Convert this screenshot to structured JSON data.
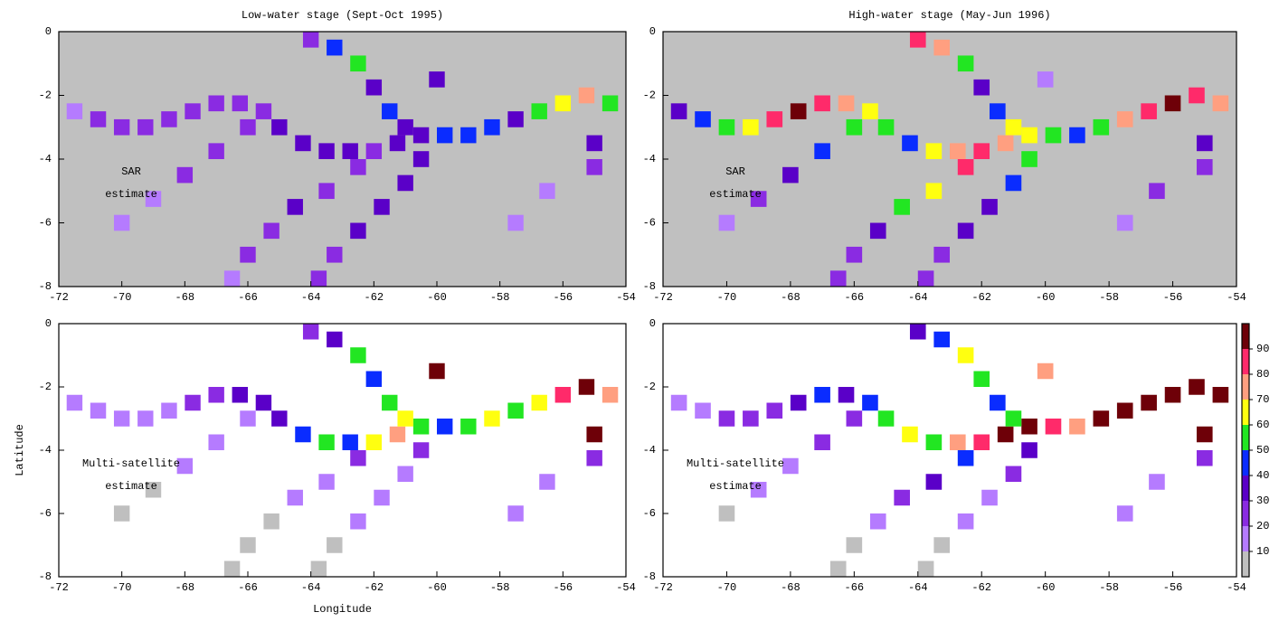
{
  "chart_data": [
    {
      "type": "cellmap",
      "title": "Low-water stage (Sept-Oct 1995)",
      "annotation": [
        "SAR",
        "estimate"
      ],
      "background": "#c0c0c0",
      "xlim": [
        -72,
        -54
      ],
      "ylim": [
        -8,
        0
      ],
      "xticks": [
        -72,
        -70,
        -68,
        -66,
        -64,
        -62,
        -60,
        -58,
        -56,
        -54
      ],
      "yticks": [
        0,
        -2,
        -4,
        -6,
        -8
      ],
      "cell_size": 0.5,
      "x": [
        -71.5,
        -70.75,
        -70,
        -69.25,
        -68.5,
        -67.75,
        -67,
        -66.25,
        -65.5,
        -65,
        -64.25,
        -63.5,
        -62.75,
        -62,
        -61.25,
        -60.5,
        -59.75,
        -59,
        -58.25,
        -57.5,
        -56.75,
        -56,
        -55.25,
        -54.5,
        -64,
        -63.25,
        -62.5,
        -62,
        -61.5,
        -61,
        -60.5,
        -61,
        -61.75,
        -62.5,
        -63.25,
        -63.75,
        -62.5,
        -63.5,
        -64.5,
        -65.25,
        -66,
        -66.5,
        -66,
        -67,
        -68,
        -69,
        -70,
        -60,
        -55,
        -55,
        -56.5,
        -57.5
      ],
      "y": [
        -2.5,
        -2.75,
        -3,
        -3,
        -2.75,
        -2.5,
        -2.25,
        -2.25,
        -2.5,
        -3,
        -3.5,
        -3.75,
        -3.75,
        -3.75,
        -3.5,
        -3.25,
        -3.25,
        -3.25,
        -3,
        -2.75,
        -2.5,
        -2.25,
        -2,
        -2.25,
        -0.25,
        -0.5,
        -1,
        -1.75,
        -2.5,
        -3,
        -4,
        -4.75,
        -5.5,
        -6.25,
        -7,
        -7.75,
        -4.25,
        -5,
        -5.5,
        -6.25,
        -7,
        -7.75,
        -3,
        -3.75,
        -4.5,
        -5.25,
        -6,
        -1.5,
        -3.5,
        -4.25,
        -5,
        -6
      ],
      "values": [
        15,
        25,
        25,
        25,
        25,
        25,
        25,
        25,
        25,
        35,
        35,
        35,
        35,
        25,
        35,
        35,
        45,
        45,
        45,
        35,
        55,
        65,
        75,
        55,
        25,
        45,
        55,
        35,
        45,
        35,
        35,
        35,
        35,
        35,
        25,
        25,
        25,
        25,
        35,
        25,
        25,
        15,
        25,
        25,
        25,
        15,
        15,
        35,
        35,
        25,
        15,
        15
      ]
    },
    {
      "type": "cellmap",
      "title": "High-water stage (May-Jun 1996)",
      "annotation": [
        "SAR",
        "estimate"
      ],
      "background": "#c0c0c0",
      "xlim": [
        -72,
        -54
      ],
      "ylim": [
        -8,
        0
      ],
      "xticks": [
        -72,
        -70,
        -68,
        -66,
        -64,
        -62,
        -60,
        -58,
        -56,
        -54
      ],
      "yticks": [
        0,
        -2,
        -4,
        -6,
        -8
      ],
      "cell_size": 0.5,
      "x": [
        -71.5,
        -70.75,
        -70,
        -69.25,
        -68.5,
        -67.75,
        -67,
        -66.25,
        -65.5,
        -65,
        -64.25,
        -63.5,
        -62.75,
        -62,
        -61.25,
        -60.5,
        -59.75,
        -59,
        -58.25,
        -57.5,
        -56.75,
        -56,
        -55.25,
        -54.5,
        -64,
        -63.25,
        -62.5,
        -62,
        -61.5,
        -61,
        -60.5,
        -61,
        -61.75,
        -62.5,
        -63.25,
        -63.75,
        -62.5,
        -63.5,
        -64.5,
        -65.25,
        -66,
        -66.5,
        -66,
        -67,
        -68,
        -69,
        -70,
        -60,
        -55,
        -55,
        -56.5,
        -57.5
      ],
      "y": [
        -2.5,
        -2.75,
        -3,
        -3,
        -2.75,
        -2.5,
        -2.25,
        -2.25,
        -2.5,
        -3,
        -3.5,
        -3.75,
        -3.75,
        -3.75,
        -3.5,
        -3.25,
        -3.25,
        -3.25,
        -3,
        -2.75,
        -2.5,
        -2.25,
        -2,
        -2.25,
        -0.25,
        -0.5,
        -1,
        -1.75,
        -2.5,
        -3,
        -4,
        -4.75,
        -5.5,
        -6.25,
        -7,
        -7.75,
        -4.25,
        -5,
        -5.5,
        -6.25,
        -7,
        -7.75,
        -3,
        -3.75,
        -4.5,
        -5.25,
        -6,
        -1.5,
        -3.5,
        -4.25,
        -5,
        -6
      ],
      "values": [
        35,
        45,
        55,
        65,
        85,
        95,
        85,
        75,
        65,
        55,
        45,
        65,
        75,
        85,
        75,
        65,
        55,
        45,
        55,
        75,
        85,
        95,
        85,
        75,
        85,
        75,
        55,
        35,
        45,
        65,
        55,
        45,
        35,
        35,
        25,
        25,
        85,
        65,
        55,
        35,
        25,
        25,
        55,
        45,
        35,
        25,
        15,
        15,
        35,
        25,
        25,
        15
      ]
    },
    {
      "type": "cellmap",
      "annotation": [
        "Multi-satellite",
        "estimate"
      ],
      "background": "#ffffff",
      "xlabel": "Longitude",
      "ylabel": "Latitude",
      "xlim": [
        -72,
        -54
      ],
      "ylim": [
        -8,
        0
      ],
      "xticks": [
        -72,
        -70,
        -68,
        -66,
        -64,
        -62,
        -60,
        -58,
        -56,
        -54
      ],
      "yticks": [
        0,
        -2,
        -4,
        -6,
        -8
      ],
      "cell_size": 0.5,
      "x": [
        -71.5,
        -70.75,
        -70,
        -69.25,
        -68.5,
        -67.75,
        -67,
        -66.25,
        -65.5,
        -65,
        -64.25,
        -63.5,
        -62.75,
        -62,
        -61.25,
        -60.5,
        -59.75,
        -59,
        -58.25,
        -57.5,
        -56.75,
        -56,
        -55.25,
        -54.5,
        -64,
        -63.25,
        -62.5,
        -62,
        -61.5,
        -61,
        -60.5,
        -61,
        -61.75,
        -62.5,
        -63.25,
        -63.75,
        -62.5,
        -63.5,
        -64.5,
        -65.25,
        -66,
        -66.5,
        -66,
        -67,
        -68,
        -69,
        -70,
        -60,
        -55,
        -55,
        -56.5,
        -57.5
      ],
      "y": [
        -2.5,
        -2.75,
        -3,
        -3,
        -2.75,
        -2.5,
        -2.25,
        -2.25,
        -2.5,
        -3,
        -3.5,
        -3.75,
        -3.75,
        -3.75,
        -3.5,
        -3.25,
        -3.25,
        -3.25,
        -3,
        -2.75,
        -2.5,
        -2.25,
        -2,
        -2.25,
        -0.25,
        -0.5,
        -1,
        -1.75,
        -2.5,
        -3,
        -4,
        -4.75,
        -5.5,
        -6.25,
        -7,
        -7.75,
        -4.25,
        -5,
        -5.5,
        -6.25,
        -7,
        -7.75,
        -3,
        -3.75,
        -4.5,
        -5.25,
        -6,
        -1.5,
        -3.5,
        -4.25,
        -5,
        -6
      ],
      "values": [
        15,
        15,
        15,
        15,
        15,
        25,
        25,
        35,
        35,
        35,
        45,
        55,
        45,
        65,
        75,
        55,
        45,
        55,
        65,
        55,
        65,
        85,
        95,
        75,
        25,
        35,
        55,
        45,
        55,
        65,
        25,
        15,
        15,
        15,
        5,
        5,
        25,
        15,
        15,
        5,
        5,
        5,
        15,
        15,
        15,
        5,
        5,
        95,
        95,
        25,
        15,
        15
      ]
    },
    {
      "type": "cellmap",
      "annotation": [
        "Multi-satellite",
        "estimate"
      ],
      "background": "#ffffff",
      "xlim": [
        -72,
        -54
      ],
      "ylim": [
        -8,
        0
      ],
      "xticks": [
        -72,
        -70,
        -68,
        -66,
        -64,
        -62,
        -60,
        -58,
        -56,
        -54
      ],
      "yticks": [
        0,
        -2,
        -4,
        -6,
        -8
      ],
      "cell_size": 0.5,
      "x": [
        -71.5,
        -70.75,
        -70,
        -69.25,
        -68.5,
        -67.75,
        -67,
        -66.25,
        -65.5,
        -65,
        -64.25,
        -63.5,
        -62.75,
        -62,
        -61.25,
        -60.5,
        -59.75,
        -59,
        -58.25,
        -57.5,
        -56.75,
        -56,
        -55.25,
        -54.5,
        -64,
        -63.25,
        -62.5,
        -62,
        -61.5,
        -61,
        -60.5,
        -61,
        -61.75,
        -62.5,
        -63.25,
        -63.75,
        -62.5,
        -63.5,
        -64.5,
        -65.25,
        -66,
        -66.5,
        -66,
        -67,
        -68,
        -69,
        -70,
        -60,
        -55,
        -55,
        -56.5,
        -57.5
      ],
      "y": [
        -2.5,
        -2.75,
        -3,
        -3,
        -2.75,
        -2.5,
        -2.25,
        -2.25,
        -2.5,
        -3,
        -3.5,
        -3.75,
        -3.75,
        -3.75,
        -3.5,
        -3.25,
        -3.25,
        -3.25,
        -3,
        -2.75,
        -2.5,
        -2.25,
        -2,
        -2.25,
        -0.25,
        -0.5,
        -1,
        -1.75,
        -2.5,
        -3,
        -4,
        -4.75,
        -5.5,
        -6.25,
        -7,
        -7.75,
        -4.25,
        -5,
        -5.5,
        -6.25,
        -7,
        -7.75,
        -3,
        -3.75,
        -4.5,
        -5.25,
        -6,
        -1.5,
        -3.5,
        -4.25,
        -5,
        -6
      ],
      "values": [
        15,
        15,
        25,
        25,
        25,
        35,
        45,
        35,
        45,
        55,
        65,
        55,
        75,
        85,
        95,
        95,
        85,
        75,
        95,
        95,
        95,
        95,
        95,
        95,
        35,
        45,
        65,
        55,
        45,
        55,
        35,
        25,
        15,
        15,
        5,
        5,
        45,
        35,
        25,
        15,
        5,
        5,
        25,
        25,
        15,
        15,
        5,
        75,
        95,
        25,
        15,
        15
      ],
      "colorbar": {
        "bounds": [
          0,
          10,
          20,
          30,
          40,
          50,
          60,
          70,
          80,
          90,
          100
        ],
        "ticks": [
          10,
          20,
          30,
          40,
          50,
          60,
          70,
          80,
          90
        ],
        "colors": [
          "#bfbfbf",
          "#b57bff",
          "#8a2be2",
          "#5a00c8",
          "#0a2cff",
          "#22e622",
          "#ffff10",
          "#ff9f80",
          "#ff2a6a",
          "#6e0008"
        ]
      }
    }
  ]
}
